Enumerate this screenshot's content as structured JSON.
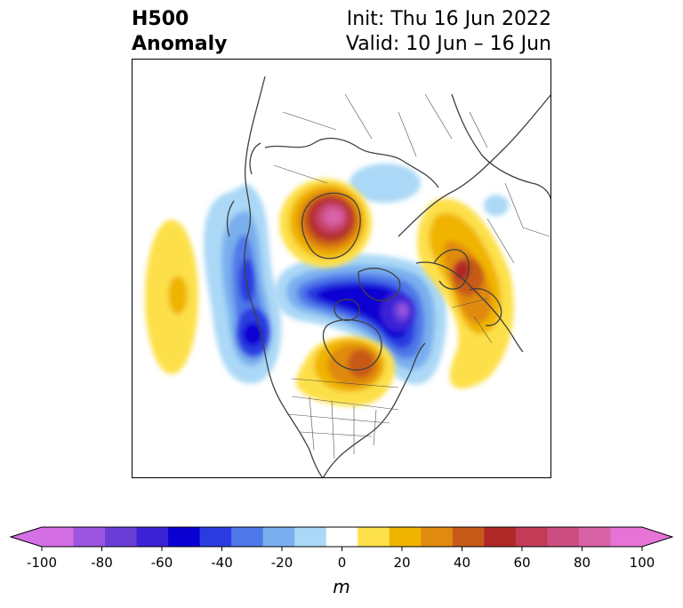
{
  "title": {
    "left_line1": "H500",
    "left_line2": "Anomaly",
    "right_line1": "Init: Thu 16 Jun 2022",
    "right_line2": "Valid: 10 Jun – 16 Jun"
  },
  "colorbar": {
    "unit": "m",
    "ticks": [
      "-100",
      "-80",
      "-60",
      "-40",
      "-20",
      "0",
      "20",
      "40",
      "60",
      "80",
      "100"
    ],
    "levels": [
      -100,
      -90,
      -80,
      -70,
      -60,
      -50,
      -40,
      -30,
      -20,
      -10,
      10,
      20,
      30,
      40,
      50,
      60,
      70,
      80,
      90,
      100
    ],
    "colors": [
      "#d46fe6",
      "#9b55e0",
      "#6a3fd8",
      "#3b22d6",
      "#0a00d2",
      "#2a3ce0",
      "#4f78e8",
      "#79afee",
      "#aad8f6",
      "#ffffff",
      "#fde04a",
      "#f0b400",
      "#e08a10",
      "#c85a18",
      "#b02828",
      "#c23c58",
      "#cc4e80",
      "#d862a6",
      "#e674d6"
    ],
    "extend_low_color": "#d46fe6",
    "extend_high_color": "#e674d6"
  },
  "map": {
    "projection": "north-polar-stereographic",
    "anomaly_centers": [
      {
        "name": "positive-center-north-canada",
        "value": 90
      },
      {
        "name": "negative-center-arctic",
        "value": -90
      },
      {
        "name": "positive-center-europe",
        "value": 60
      },
      {
        "name": "positive-center-hudson",
        "value": 50
      },
      {
        "name": "negative-center-pacific",
        "value": -60
      },
      {
        "name": "positive-center-north-pacific",
        "value": 20
      }
    ]
  }
}
